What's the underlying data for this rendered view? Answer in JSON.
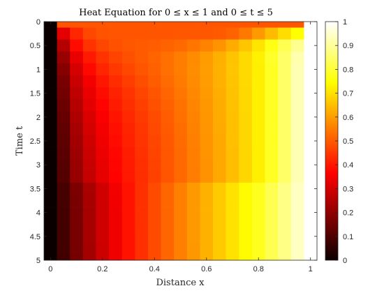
{
  "chart_data": {
    "type": "heatmap",
    "title": "Heat Equation for 0 ≤ x ≤ 1 and 0 ≤ t ≤ 5",
    "xlabel": "Distance x",
    "ylabel": "Time t",
    "xlim": [
      -0.025,
      1.025
    ],
    "ylim": [
      0,
      5
    ],
    "y_axis_direction": "reversed",
    "x_ticks": [
      "0",
      "0.2",
      "0.4",
      "0.6",
      "0.8",
      "1"
    ],
    "y_ticks": [
      "0",
      "0.5",
      "1",
      "1.5",
      "2",
      "2.5",
      "3",
      "3.5",
      "4",
      "4.5",
      "5"
    ],
    "x": [
      0,
      0.05,
      0.1,
      0.15,
      0.2,
      0.25,
      0.3,
      0.35,
      0.4,
      0.45,
      0.5,
      0.55,
      0.6,
      0.65,
      0.7,
      0.75,
      0.8,
      0.85,
      0.9,
      0.95,
      1
    ],
    "t": [
      0,
      0.25,
      0.5,
      0.75,
      1,
      1.25,
      1.5,
      1.75,
      2,
      2.25,
      2.5,
      2.75,
      3,
      3.25,
      3.5,
      3.75,
      4,
      4.25,
      4.5,
      4.75,
      5
    ],
    "colormap": "hot",
    "clim": [
      0,
      1
    ],
    "colorbar": {
      "location": "right",
      "ticks": [
        "0",
        "0.1",
        "0.2",
        "0.3",
        "0.4",
        "0.5",
        "0.6",
        "0.7",
        "0.8",
        "0.9",
        "1"
      ]
    },
    "grid": false,
    "u": [
      [
        0,
        0.5,
        0.5,
        0.5,
        0.5,
        0.5,
        0.5,
        0.5,
        0.5,
        0.5,
        0.5,
        0.5,
        0.5,
        0.5,
        0.5,
        0.5,
        0.5,
        0.5,
        0.5,
        0.5,
        1
      ],
      [
        0,
        0.334,
        0.433,
        0.48,
        0.497,
        0.5,
        0.5,
        0.5,
        0.5,
        0.5,
        0.501,
        0.502,
        0.503,
        0.508,
        0.52,
        0.552,
        0.6,
        0.65,
        0.7,
        0.75,
        1
      ],
      [
        0,
        0.262,
        0.391,
        0.449,
        0.478,
        0.494,
        0.502,
        0.507,
        0.512,
        0.52,
        0.53,
        0.547,
        0.566,
        0.593,
        0.626,
        0.666,
        0.71,
        0.77,
        0.83,
        0.89,
        1
      ],
      [
        0,
        0.218,
        0.341,
        0.412,
        0.45,
        0.475,
        0.491,
        0.507,
        0.522,
        0.54,
        0.559,
        0.58,
        0.604,
        0.632,
        0.662,
        0.695,
        0.73,
        0.79,
        0.85,
        0.92,
        1
      ],
      [
        0,
        0.189,
        0.314,
        0.387,
        0.43,
        0.458,
        0.48,
        0.499,
        0.518,
        0.539,
        0.56,
        0.583,
        0.608,
        0.635,
        0.664,
        0.695,
        0.727,
        0.785,
        0.85,
        0.925,
        1
      ],
      [
        0,
        0.17,
        0.293,
        0.36,
        0.408,
        0.44,
        0.465,
        0.488,
        0.51,
        0.532,
        0.556,
        0.58,
        0.606,
        0.634,
        0.663,
        0.694,
        0.726,
        0.785,
        0.85,
        0.925,
        1
      ],
      [
        0,
        0.158,
        0.275,
        0.344,
        0.392,
        0.425,
        0.452,
        0.477,
        0.5,
        0.524,
        0.549,
        0.575,
        0.602,
        0.631,
        0.661,
        0.693,
        0.726,
        0.785,
        0.85,
        0.925,
        1
      ],
      [
        0,
        0.148,
        0.261,
        0.33,
        0.379,
        0.414,
        0.442,
        0.467,
        0.492,
        0.517,
        0.543,
        0.57,
        0.598,
        0.628,
        0.659,
        0.692,
        0.726,
        0.785,
        0.85,
        0.925,
        1
      ],
      [
        0,
        0.14,
        0.25,
        0.319,
        0.368,
        0.405,
        0.434,
        0.46,
        0.486,
        0.512,
        0.539,
        0.567,
        0.596,
        0.626,
        0.658,
        0.691,
        0.726,
        0.785,
        0.85,
        0.925,
        1
      ],
      [
        0,
        0.133,
        0.24,
        0.31,
        0.36,
        0.397,
        0.428,
        0.455,
        0.481,
        0.508,
        0.536,
        0.564,
        0.594,
        0.625,
        0.657,
        0.691,
        0.726,
        0.785,
        0.85,
        0.925,
        1
      ],
      [
        0,
        0.127,
        0.232,
        0.302,
        0.353,
        0.391,
        0.423,
        0.451,
        0.478,
        0.505,
        0.533,
        0.562,
        0.592,
        0.624,
        0.657,
        0.691,
        0.726,
        0.785,
        0.85,
        0.925,
        1
      ],
      [
        0,
        0.122,
        0.225,
        0.295,
        0.347,
        0.386,
        0.418,
        0.447,
        0.475,
        0.503,
        0.531,
        0.561,
        0.591,
        0.623,
        0.656,
        0.69,
        0.726,
        0.785,
        0.85,
        0.925,
        1
      ],
      [
        0,
        0.117,
        0.219,
        0.289,
        0.342,
        0.382,
        0.415,
        0.444,
        0.472,
        0.501,
        0.53,
        0.56,
        0.59,
        0.622,
        0.656,
        0.69,
        0.726,
        0.785,
        0.85,
        0.925,
        1
      ],
      [
        0,
        0.113,
        0.214,
        0.284,
        0.338,
        0.378,
        0.412,
        0.442,
        0.471,
        0.5,
        0.529,
        0.559,
        0.59,
        0.622,
        0.655,
        0.69,
        0.726,
        0.785,
        0.85,
        0.925,
        1
      ],
      [
        0,
        0.093,
        0.174,
        0.243,
        0.304,
        0.356,
        0.403,
        0.446,
        0.486,
        0.525,
        0.563,
        0.6,
        0.636,
        0.672,
        0.708,
        0.744,
        0.779,
        0.83,
        0.88,
        0.94,
        1
      ],
      [
        0,
        0.09,
        0.171,
        0.241,
        0.302,
        0.355,
        0.402,
        0.445,
        0.486,
        0.525,
        0.563,
        0.6,
        0.636,
        0.672,
        0.708,
        0.744,
        0.779,
        0.83,
        0.88,
        0.94,
        1
      ],
      [
        0,
        0.088,
        0.169,
        0.24,
        0.301,
        0.354,
        0.402,
        0.445,
        0.485,
        0.525,
        0.563,
        0.6,
        0.636,
        0.672,
        0.708,
        0.744,
        0.779,
        0.83,
        0.88,
        0.94,
        1
      ],
      [
        0,
        0.087,
        0.168,
        0.239,
        0.3,
        0.354,
        0.401,
        0.445,
        0.485,
        0.524,
        0.562,
        0.6,
        0.636,
        0.672,
        0.708,
        0.744,
        0.779,
        0.83,
        0.88,
        0.94,
        1
      ],
      [
        0,
        0.086,
        0.167,
        0.238,
        0.3,
        0.353,
        0.401,
        0.444,
        0.485,
        0.524,
        0.562,
        0.6,
        0.636,
        0.672,
        0.708,
        0.744,
        0.779,
        0.83,
        0.88,
        0.94,
        1
      ],
      [
        0,
        0.085,
        0.166,
        0.237,
        0.299,
        0.353,
        0.401,
        0.444,
        0.485,
        0.524,
        0.562,
        0.599,
        0.636,
        0.672,
        0.708,
        0.744,
        0.779,
        0.83,
        0.88,
        0.94,
        1
      ],
      [
        0,
        0.084,
        0.165,
        0.237,
        0.299,
        0.353,
        0.401,
        0.444,
        0.485,
        0.524,
        0.562,
        0.599,
        0.636,
        0.672,
        0.708,
        0.744,
        0.779,
        0.83,
        0.88,
        0.94,
        1
      ]
    ]
  }
}
